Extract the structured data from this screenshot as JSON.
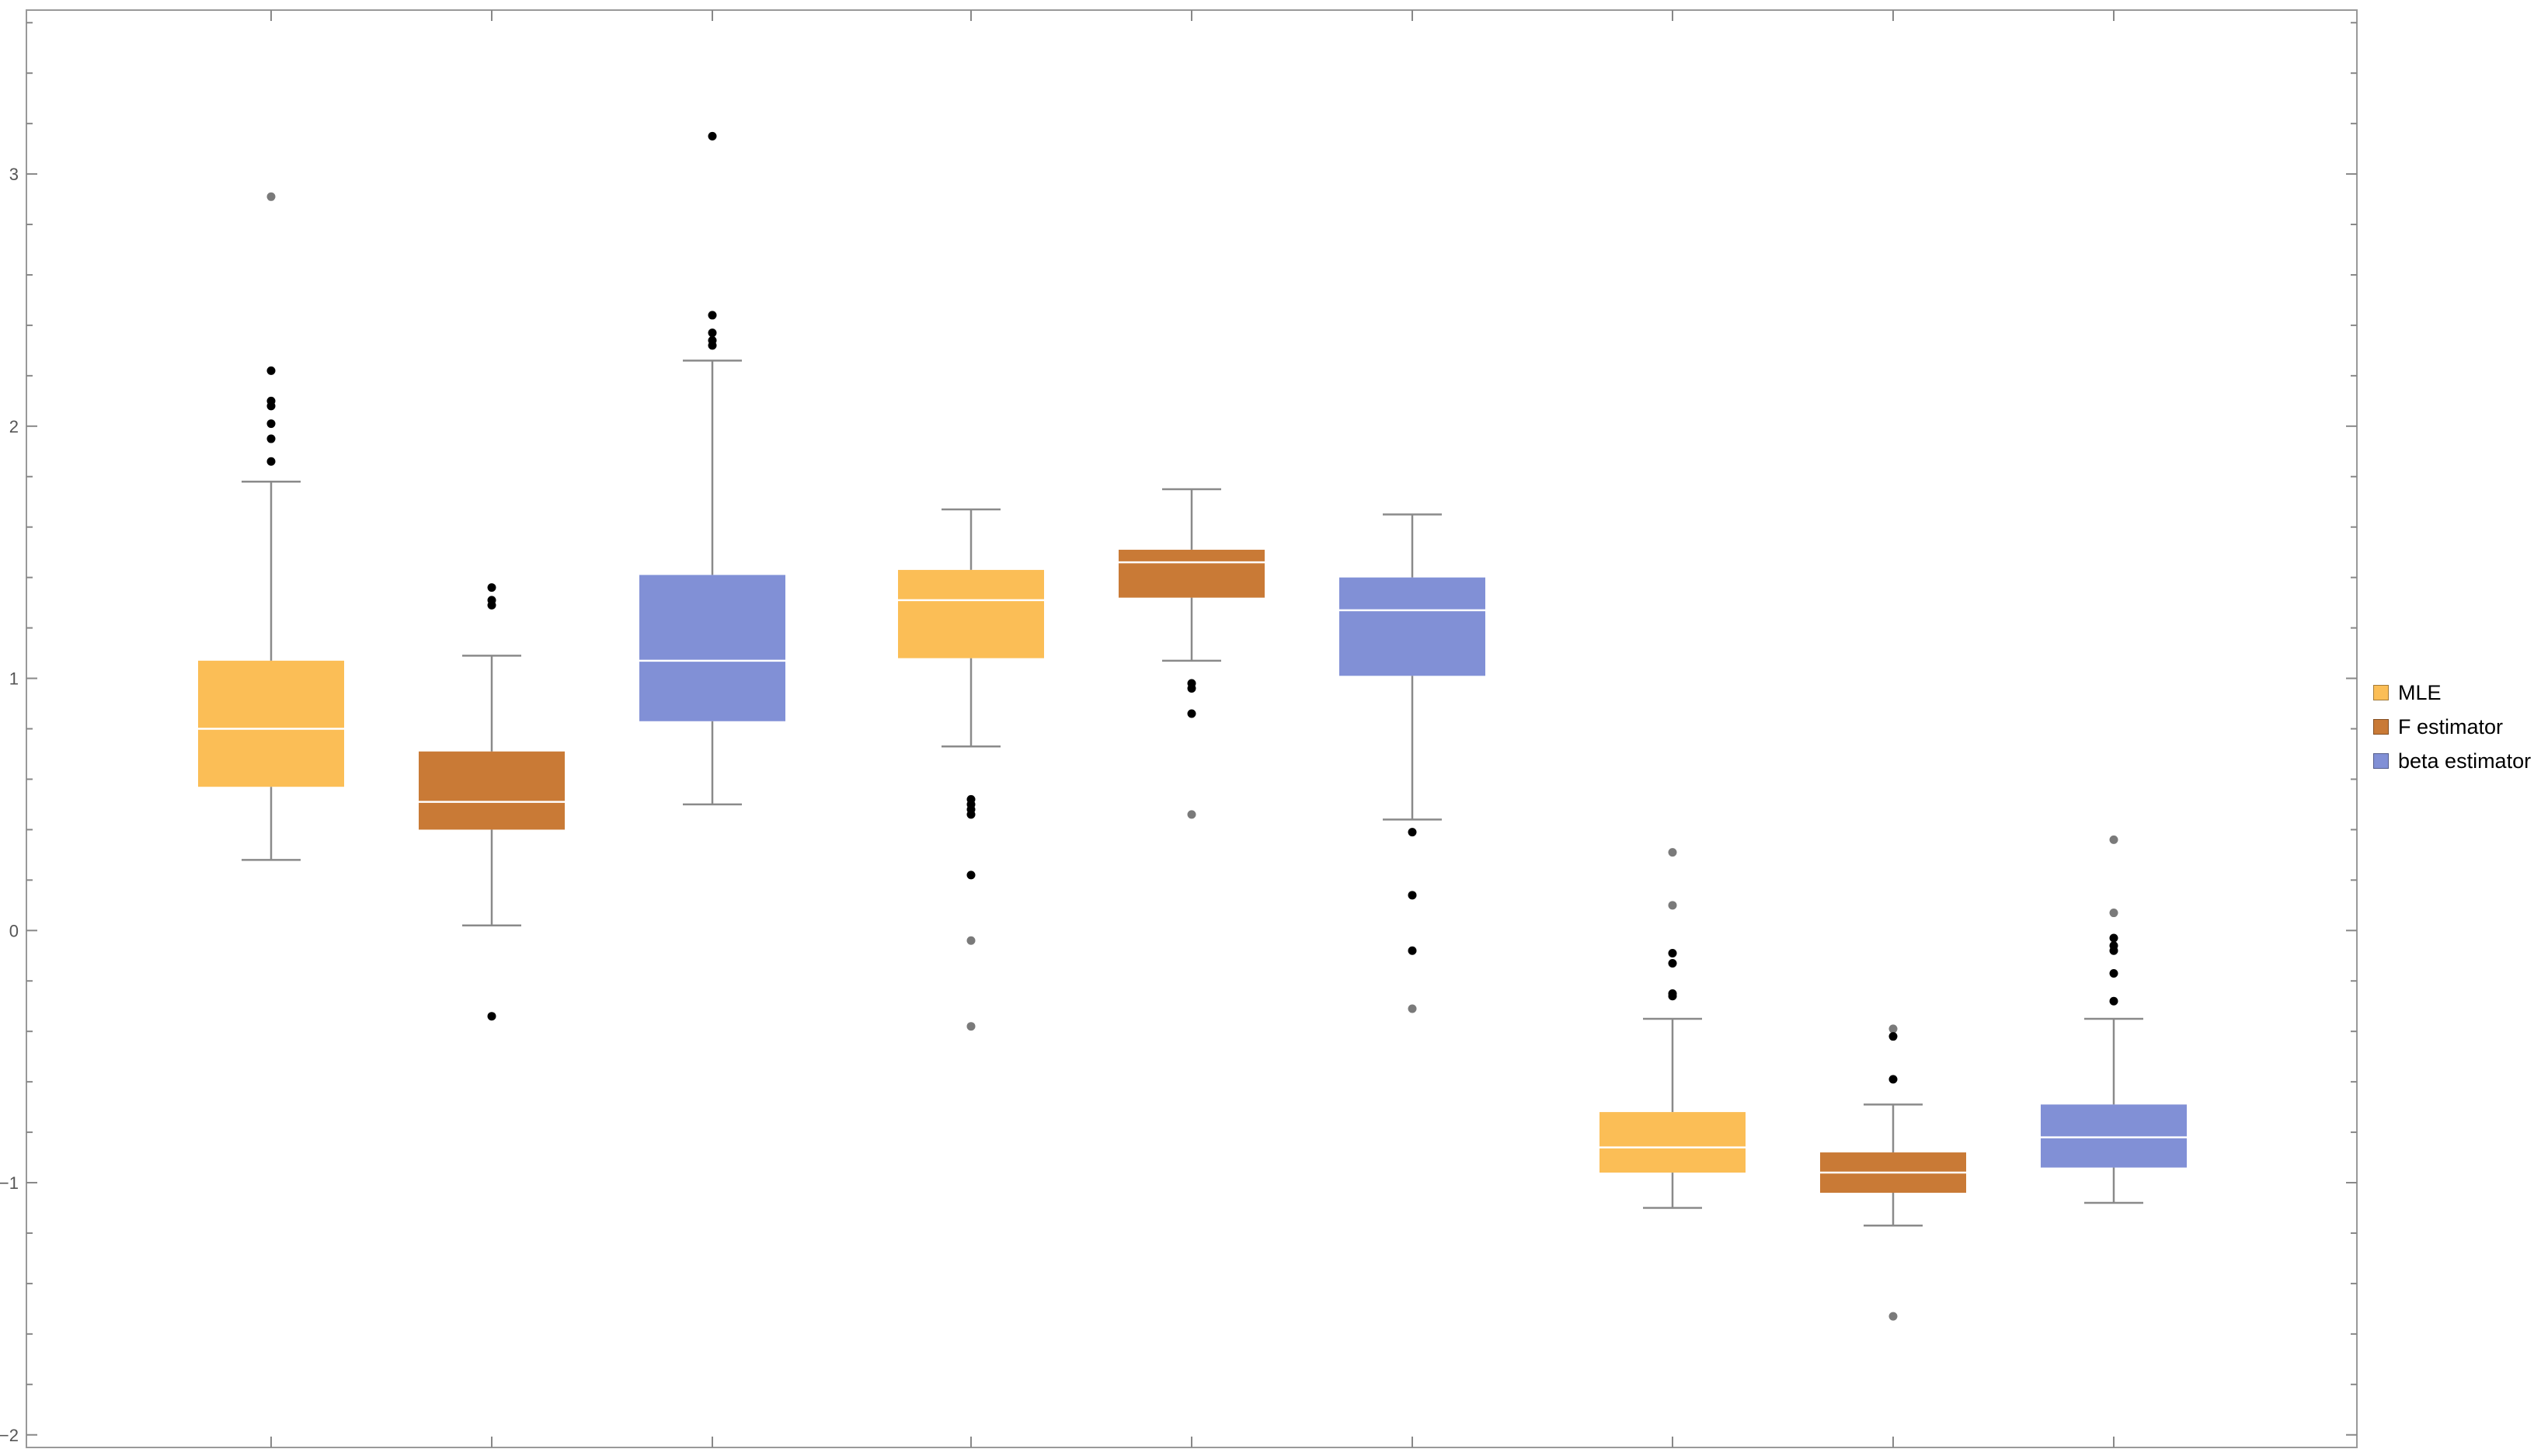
{
  "chart_data": {
    "type": "box",
    "ylim": [
      -2.05,
      3.65
    ],
    "yticks": [
      {
        "value": -2,
        "label": "−2"
      },
      {
        "value": -1,
        "label": "−1"
      },
      {
        "value": 0,
        "label": "0"
      },
      {
        "value": 1,
        "label": "1"
      },
      {
        "value": 2,
        "label": "2"
      },
      {
        "value": 3,
        "label": "3"
      }
    ],
    "minor_step": 0.2,
    "grid": false,
    "legend_position": "right",
    "series": [
      {
        "name": "MLE",
        "color": "#fbbe56"
      },
      {
        "name": "F estimator",
        "color": "#c97a36"
      },
      {
        "name": "beta estimator",
        "color": "#8190d6"
      }
    ],
    "groups": [
      {
        "boxes": [
          {
            "series": 0,
            "lower_whisker": 0.28,
            "q1": 0.57,
            "median": 0.8,
            "q3": 1.07,
            "upper_whisker": 1.78,
            "far_outliers": [
              2.91
            ],
            "near_outliers": [
              1.86,
              1.95,
              2.01,
              2.08,
              2.1,
              2.22
            ]
          },
          {
            "series": 1,
            "lower_whisker": 0.02,
            "q1": 0.4,
            "median": 0.51,
            "q3": 0.71,
            "upper_whisker": 1.09,
            "far_outliers": [],
            "near_outliers": [
              -0.34,
              1.29,
              1.31,
              1.36
            ]
          },
          {
            "series": 2,
            "lower_whisker": 0.5,
            "q1": 0.83,
            "median": 1.07,
            "q3": 1.41,
            "upper_whisker": 2.26,
            "far_outliers": [],
            "near_outliers": [
              2.32,
              2.34,
              2.37,
              2.44,
              3.15
            ]
          }
        ]
      },
      {
        "boxes": [
          {
            "series": 0,
            "lower_whisker": 0.73,
            "q1": 1.08,
            "median": 1.31,
            "q3": 1.43,
            "upper_whisker": 1.67,
            "far_outliers": [
              -0.38,
              -0.04
            ],
            "near_outliers": [
              0.22,
              0.46,
              0.48,
              0.5,
              0.52
            ]
          },
          {
            "series": 1,
            "lower_whisker": 1.07,
            "q1": 1.32,
            "median": 1.46,
            "q3": 1.51,
            "upper_whisker": 1.75,
            "far_outliers": [
              0.46
            ],
            "near_outliers": [
              0.86,
              0.96,
              0.98
            ]
          },
          {
            "series": 2,
            "lower_whisker": 0.44,
            "q1": 1.01,
            "median": 1.27,
            "q3": 1.4,
            "upper_whisker": 1.65,
            "far_outliers": [
              -0.31
            ],
            "near_outliers": [
              -0.08,
              0.14,
              0.39
            ]
          }
        ]
      },
      {
        "boxes": [
          {
            "series": 0,
            "lower_whisker": -1.1,
            "q1": -0.96,
            "median": -0.86,
            "q3": -0.72,
            "upper_whisker": -0.35,
            "far_outliers": [
              0.1,
              0.31
            ],
            "near_outliers": [
              -0.26,
              -0.25,
              -0.13,
              -0.09
            ]
          },
          {
            "series": 1,
            "lower_whisker": -1.17,
            "q1": -1.04,
            "median": -0.96,
            "q3": -0.88,
            "upper_whisker": -0.69,
            "far_outliers": [
              -1.53,
              -0.39
            ],
            "near_outliers": [
              -0.59,
              -0.42
            ]
          },
          {
            "series": 2,
            "lower_whisker": -1.08,
            "q1": -0.94,
            "median": -0.82,
            "q3": -0.69,
            "upper_whisker": -0.35,
            "far_outliers": [
              0.07,
              0.36
            ],
            "near_outliers": [
              -0.28,
              -0.17,
              -0.08,
              -0.06,
              -0.03
            ]
          }
        ]
      }
    ]
  }
}
